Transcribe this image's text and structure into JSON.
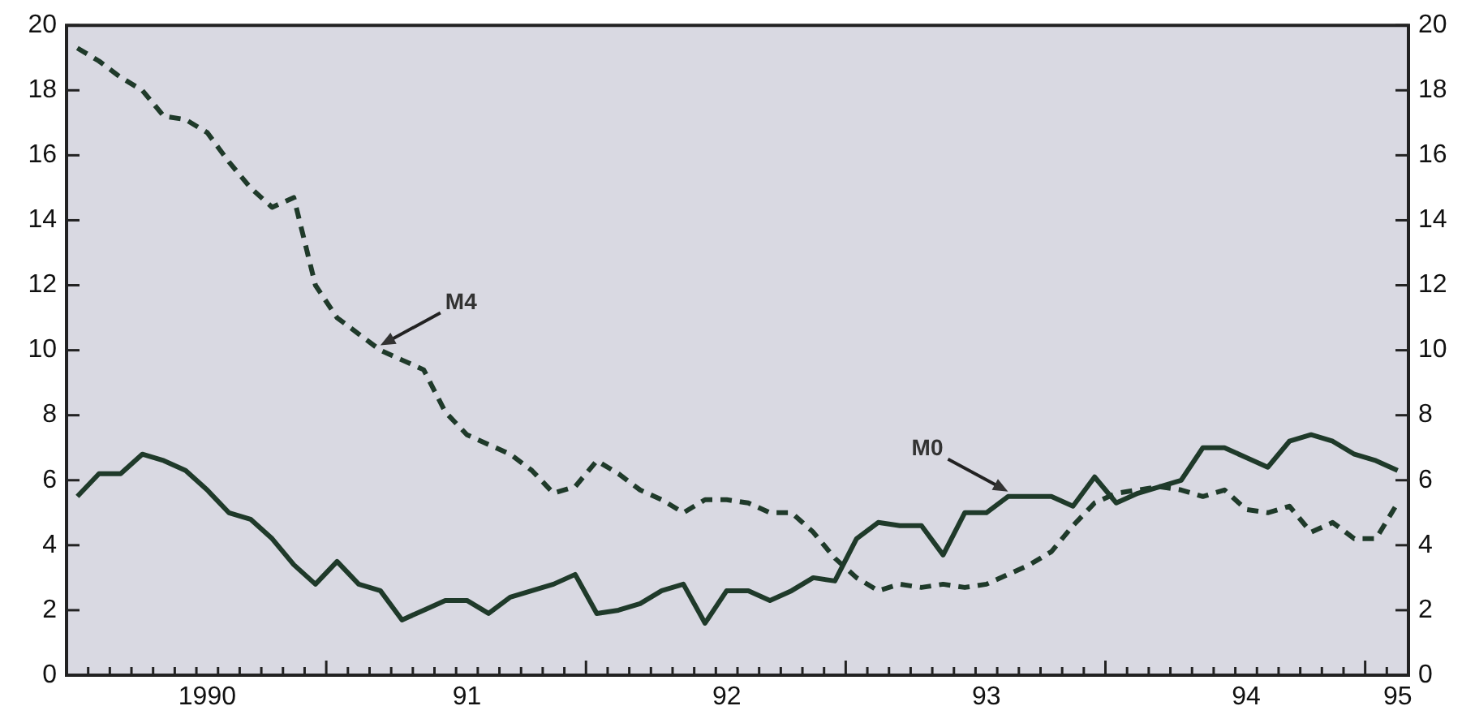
{
  "chart_data": {
    "type": "line",
    "categories": [
      null,
      null,
      null,
      null,
      null,
      null,
      "1990",
      null,
      null,
      null,
      null,
      null,
      null,
      null,
      null,
      null,
      null,
      null,
      "91",
      null,
      null,
      null,
      null,
      null,
      null,
      null,
      null,
      null,
      null,
      null,
      "92",
      null,
      null,
      null,
      null,
      null,
      null,
      null,
      null,
      null,
      null,
      null,
      "93",
      null,
      null,
      null,
      null,
      null,
      null,
      null,
      null,
      null,
      null,
      null,
      "94",
      null,
      null,
      null,
      null,
      null,
      null,
      "95"
    ],
    "series": [
      {
        "name": "M0",
        "color": "#1f3a2a",
        "line_style": "solid",
        "values": [
          5.5,
          6.2,
          6.2,
          6.8,
          6.6,
          6.3,
          5.7,
          5.0,
          4.8,
          4.2,
          3.4,
          2.8,
          3.5,
          2.8,
          2.6,
          1.7,
          2.0,
          2.3,
          2.3,
          1.9,
          2.4,
          2.6,
          2.8,
          3.1,
          1.9,
          2.0,
          2.2,
          2.6,
          2.8,
          1.6,
          2.6,
          2.6,
          2.3,
          2.6,
          3.0,
          2.9,
          4.2,
          4.7,
          4.6,
          4.6,
          3.7,
          5.0,
          5.0,
          5.5,
          5.5,
          5.5,
          5.2,
          6.1,
          5.3,
          5.6,
          5.8,
          6.0,
          7.0,
          7.0,
          6.7,
          6.4,
          7.2,
          7.4,
          7.2,
          6.8,
          6.6,
          6.3
        ]
      },
      {
        "name": "M4",
        "color": "#1f3a2a",
        "line_style": "dashed",
        "values": [
          19.3,
          18.9,
          18.4,
          18.0,
          17.2,
          17.1,
          16.7,
          15.8,
          15.0,
          14.4,
          14.7,
          12.0,
          11.0,
          10.5,
          10.0,
          9.7,
          9.4,
          8.1,
          7.4,
          7.1,
          6.8,
          6.3,
          5.6,
          5.8,
          6.6,
          6.2,
          5.7,
          5.4,
          5.0,
          5.4,
          5.4,
          5.3,
          5.0,
          5.0,
          4.4,
          3.6,
          3.0,
          2.6,
          2.8,
          2.7,
          2.8,
          2.7,
          2.8,
          3.1,
          3.4,
          3.8,
          4.6,
          5.3,
          5.6,
          5.7,
          5.8,
          5.7,
          5.5,
          5.7,
          5.1,
          5.0,
          5.2,
          4.4,
          4.7,
          4.2,
          4.2,
          5.3
        ]
      }
    ],
    "ylim": [
      0,
      20
    ],
    "yticks": [
      0,
      2,
      4,
      6,
      8,
      10,
      12,
      14,
      16,
      18,
      20
    ],
    "y2lim": [
      0,
      20
    ],
    "y2ticks": [
      0,
      2,
      4,
      6,
      8,
      10,
      12,
      14,
      16,
      18,
      20
    ],
    "grid": false,
    "legend": false,
    "marker": "none"
  }
}
